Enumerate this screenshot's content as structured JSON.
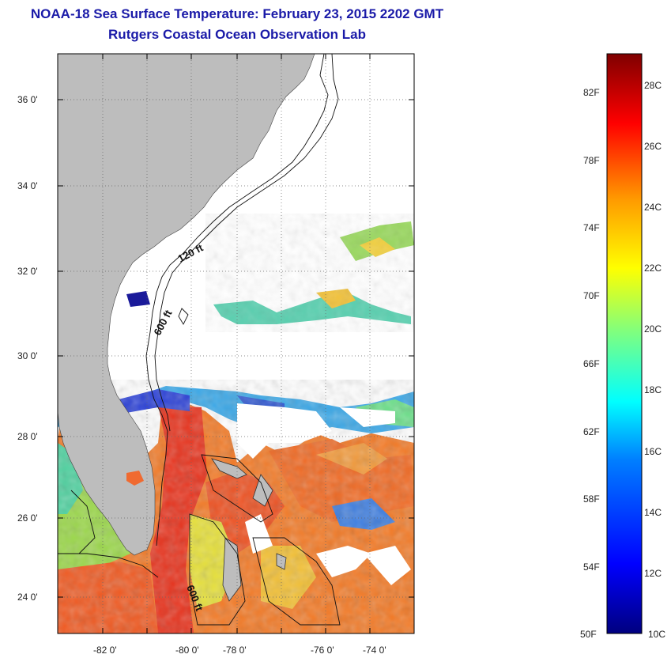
{
  "header": {
    "title": "NOAA-18 Sea Surface Temperature:  February 23, 2015 2202 GMT",
    "subtitle": "Rutgers Coastal Ocean Observation Lab"
  },
  "map": {
    "lon_ticks": [
      "-82 0'",
      "-80 0'",
      "-78 0'",
      "-76 0'",
      "-74 0'"
    ],
    "lat_ticks": [
      "36 0'",
      "34 0'",
      "32 0'",
      "30 0'",
      "28 0'",
      "26 0'",
      "24 0'"
    ],
    "contour_labels": [
      "120 ft",
      "600 ft",
      "600 ft"
    ],
    "colors": {
      "land": "#bdbdbd",
      "cloud": "#ffffff"
    }
  },
  "colorbar": {
    "fahrenheit_labels": [
      "82F",
      "78F",
      "74F",
      "70F",
      "66F",
      "62F",
      "58F",
      "54F",
      "50F"
    ],
    "celsius_labels": [
      "28C",
      "26C",
      "24C",
      "22C",
      "20C",
      "18C",
      "16C",
      "14C",
      "12C",
      "10C"
    ],
    "colors": [
      "#00007f",
      "#0000ff",
      "#007fff",
      "#00ffff",
      "#7fff7f",
      "#ffff00",
      "#ff7f00",
      "#ff0000",
      "#7f0000"
    ]
  }
}
